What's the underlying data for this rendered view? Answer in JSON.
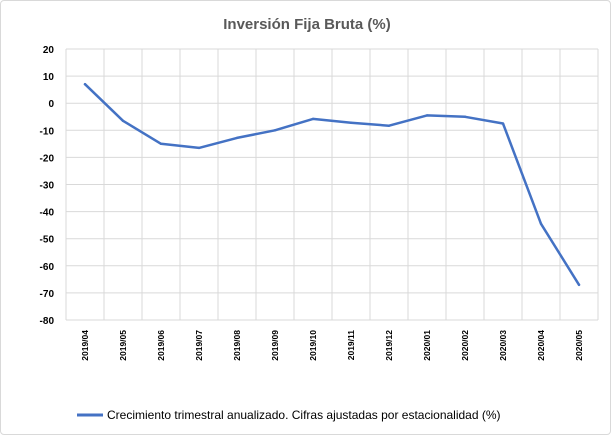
{
  "chart_data": {
    "type": "line",
    "title": "Inversión Fija Bruta (%)",
    "categories": [
      "2019/04",
      "2019/05",
      "2019/06",
      "2019/07",
      "2019/08",
      "2019/09",
      "2019/10",
      "2019/11",
      "2019/12",
      "2020/01",
      "2020/02",
      "2020/03",
      "2020/04",
      "2020/05"
    ],
    "series": [
      {
        "name": "Crecimiento trimestral anualizado. Cifras ajustadas por estacionalidad (%)",
        "color": "#4472c4",
        "values": [
          7.0,
          -6.5,
          -15.0,
          -16.5,
          -12.8,
          -10.0,
          -5.8,
          -7.2,
          -8.3,
          -4.5,
          -5.0,
          -7.5,
          -44.5,
          -67.0
        ]
      }
    ],
    "ylim": [
      -80,
      20
    ],
    "yticks": [
      20,
      10,
      0,
      -10,
      -20,
      -30,
      -40,
      -50,
      -60,
      -70,
      -80
    ],
    "grid": true,
    "legend": "bottom"
  }
}
